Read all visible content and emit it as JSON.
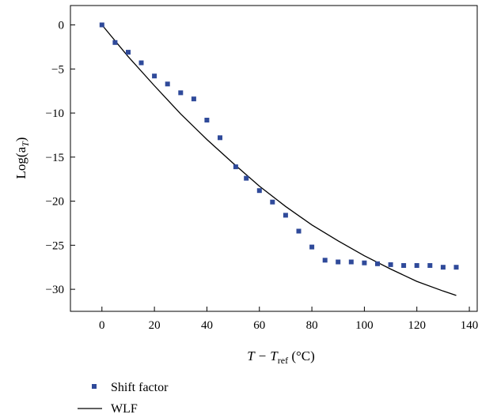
{
  "chart_data": {
    "type": "scatter",
    "title": "",
    "xlabel": {
      "main": "T − T",
      "sub": "ref",
      "unit": " (°C)"
    },
    "ylabel": {
      "prefix": "Log(a",
      "sub": "T",
      "suffix": ")"
    },
    "xlim": [
      -12,
      143
    ],
    "ylim": [
      -32.5,
      2.2
    ],
    "xticks": [
      0,
      20,
      40,
      60,
      80,
      100,
      120,
      140
    ],
    "yticks": [
      0,
      -5,
      -10,
      -15,
      -20,
      -25,
      -30
    ],
    "grid": false,
    "legend_position": "bottom-left, below plot",
    "series": [
      {
        "name": "Shift factor",
        "style": "square-markers",
        "color": "#2f4a9a",
        "x": [
          0,
          5,
          10,
          15,
          20,
          25,
          30,
          35,
          40,
          45,
          51,
          55,
          60,
          65,
          70,
          75,
          80,
          85,
          90,
          95,
          100,
          105,
          110,
          115,
          120,
          125,
          130,
          135
        ],
        "y": [
          0,
          -2.0,
          -3.1,
          -4.3,
          -5.8,
          -6.7,
          -7.7,
          -8.4,
          -10.8,
          -12.8,
          -16.1,
          -17.4,
          -18.8,
          -20.1,
          -21.6,
          -23.4,
          -25.2,
          -26.7,
          -26.9,
          -26.9,
          -27.0,
          -27.1,
          -27.2,
          -27.3,
          -27.3,
          -27.3,
          -27.5,
          -27.5
        ]
      },
      {
        "name": "WLF",
        "style": "line",
        "color": "#000000",
        "x": [
          0,
          10,
          20,
          30,
          40,
          50,
          60,
          70,
          80,
          90,
          100,
          110,
          120,
          130,
          135
        ],
        "y": [
          0,
          -3.6,
          -6.9,
          -10.1,
          -13.0,
          -15.7,
          -18.3,
          -20.6,
          -22.7,
          -24.5,
          -26.2,
          -27.7,
          -29.1,
          -30.2,
          -30.7
        ]
      }
    ]
  }
}
